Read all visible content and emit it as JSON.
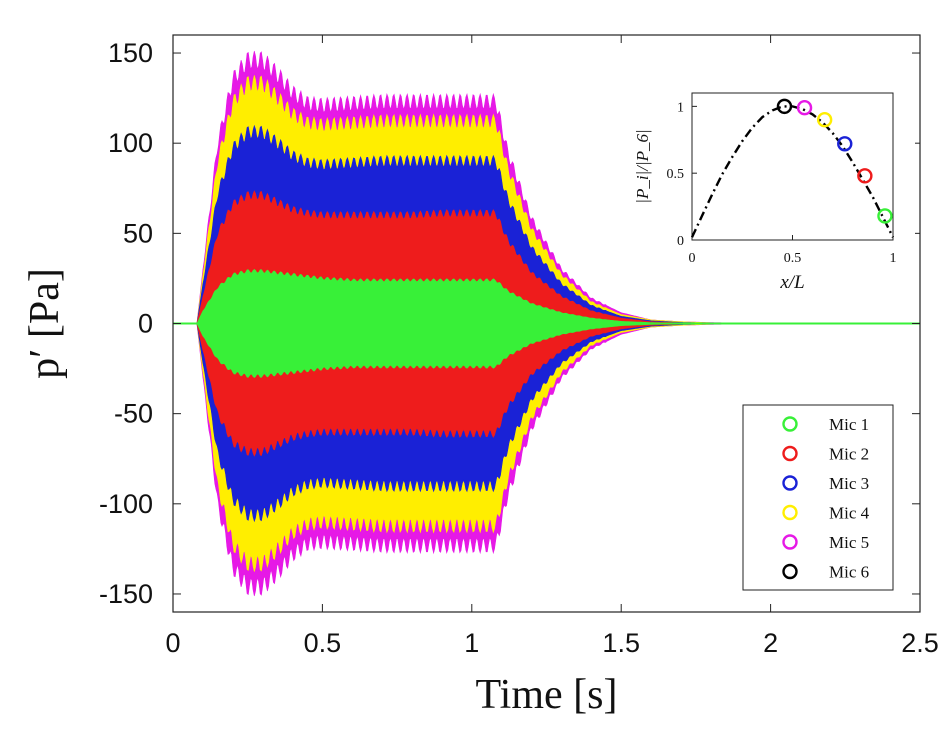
{
  "chart_data": [
    {
      "type": "area",
      "chart_role": "main",
      "xlabel": "Time [s]",
      "ylabel": "p′ [Pa]",
      "xlim": [
        0,
        2.5
      ],
      "ylim": [
        -160,
        160
      ],
      "x_ticks": [
        0,
        0.5,
        1,
        1.5,
        2,
        2.5
      ],
      "x_tick_labels": [
        "0",
        "0.5",
        "1",
        "1.5",
        "2",
        "2.5"
      ],
      "y_ticks": [
        150,
        100,
        50,
        0,
        -50,
        -100,
        -150
      ],
      "y_tick_labels": [
        "150",
        "100",
        "50",
        "0",
        "-50",
        "-100",
        "-150"
      ],
      "grid": false,
      "description_of_series": "Symmetric pressure envelopes (±amplitude); each series shown as a filled oscillation band",
      "x": [
        0,
        0.08,
        0.1,
        0.15,
        0.2,
        0.25,
        0.3,
        0.35,
        0.4,
        0.45,
        0.5,
        0.6,
        0.7,
        0.8,
        0.9,
        1.0,
        1.08,
        1.12,
        1.2,
        1.3,
        1.4,
        1.5,
        1.6,
        1.7,
        1.8,
        2.0,
        2.2,
        2.5
      ],
      "series": [
        {
          "name": "Mic 5",
          "color": "#e619e6",
          "values": [
            0,
            0,
            30,
            100,
            135,
            146,
            146,
            138,
            128,
            122,
            121,
            122,
            123,
            123,
            123,
            123,
            123,
            95,
            58,
            30,
            14,
            6,
            2,
            1,
            0.5,
            0,
            0,
            0
          ]
        },
        {
          "name": "Mic 4",
          "color": "#ffee00",
          "values": [
            0,
            0,
            27,
            90,
            122,
            133,
            133,
            125,
            116,
            111,
            110,
            111,
            112,
            112,
            112,
            112,
            112,
            86,
            52,
            27,
            12,
            5,
            2,
            1,
            0.4,
            0,
            0,
            0
          ]
        },
        {
          "name": "Mic 3",
          "color": "#1a22d6",
          "values": [
            0,
            0,
            22,
            72,
            97,
            106,
            106,
            100,
            93,
            89,
            88,
            89,
            90,
            90,
            90,
            90,
            90,
            69,
            42,
            22,
            10,
            4,
            1.5,
            0.6,
            0.2,
            0,
            0,
            0
          ]
        },
        {
          "name": "Mic 2",
          "color": "#ee1c1c",
          "values": [
            0,
            0,
            15,
            50,
            66,
            71,
            71,
            67,
            63,
            61,
            60,
            60,
            60,
            60,
            61,
            61,
            61,
            46,
            28,
            15,
            7,
            3,
            1,
            0.4,
            0.1,
            0,
            0,
            0
          ]
        },
        {
          "name": "Mic 1",
          "color": "#38f038",
          "values": [
            0,
            0,
            7,
            20,
            27,
            29,
            29,
            28,
            27,
            26,
            25,
            24,
            24,
            24,
            24,
            24,
            24,
            18,
            11,
            6,
            3,
            1.2,
            0.5,
            0.2,
            0,
            0,
            0,
            0
          ]
        }
      ],
      "legend": {
        "position": "bottom-right",
        "entries": [
          {
            "label": "Mic 1",
            "color": "#38f038"
          },
          {
            "label": "Mic 2",
            "color": "#ee1c1c"
          },
          {
            "label": "Mic 3",
            "color": "#1a22d6"
          },
          {
            "label": "Mic 4",
            "color": "#ffee00"
          },
          {
            "label": "Mic 5",
            "color": "#e619e6"
          },
          {
            "label": "Mic 6",
            "color": "#000000"
          }
        ]
      }
    },
    {
      "type": "line",
      "chart_role": "inset",
      "position": "top-right",
      "xlabel": "x/L",
      "ylabel": "|P_i|/|P_6|",
      "xlim": [
        0,
        1
      ],
      "ylim": [
        0,
        1.1
      ],
      "x_ticks": [
        0,
        0.5,
        1
      ],
      "x_tick_labels": [
        "0",
        "0.5",
        "1"
      ],
      "y_ticks": [
        0,
        0.5,
        1
      ],
      "y_tick_labels": [
        "0",
        "0.5",
        "1"
      ],
      "curve": {
        "style": "dash-dot",
        "color": "#000000",
        "x": [
          0,
          0.05,
          0.1,
          0.15,
          0.2,
          0.25,
          0.3,
          0.35,
          0.4,
          0.45,
          0.5,
          0.55,
          0.6,
          0.65,
          0.7,
          0.75,
          0.8,
          0.85,
          0.9,
          0.95,
          1.0
        ],
        "y": [
          0.02,
          0.18,
          0.34,
          0.49,
          0.62,
          0.74,
          0.84,
          0.92,
          0.97,
          1.0,
          1.0,
          0.98,
          0.94,
          0.88,
          0.8,
          0.7,
          0.58,
          0.45,
          0.32,
          0.17,
          0.02
        ]
      },
      "points": [
        {
          "label": "Mic 1",
          "x": 0.96,
          "y": 0.18,
          "color": "#38f038"
        },
        {
          "label": "Mic 2",
          "x": 0.86,
          "y": 0.48,
          "color": "#ee1c1c"
        },
        {
          "label": "Mic 3",
          "x": 0.76,
          "y": 0.72,
          "color": "#1a22d6"
        },
        {
          "label": "Mic 4",
          "x": 0.66,
          "y": 0.9,
          "color": "#ffee00"
        },
        {
          "label": "Mic 5",
          "x": 0.56,
          "y": 0.99,
          "color": "#e619e6"
        },
        {
          "label": "Mic 6",
          "x": 0.46,
          "y": 1.0,
          "color": "#000000"
        }
      ]
    }
  ]
}
